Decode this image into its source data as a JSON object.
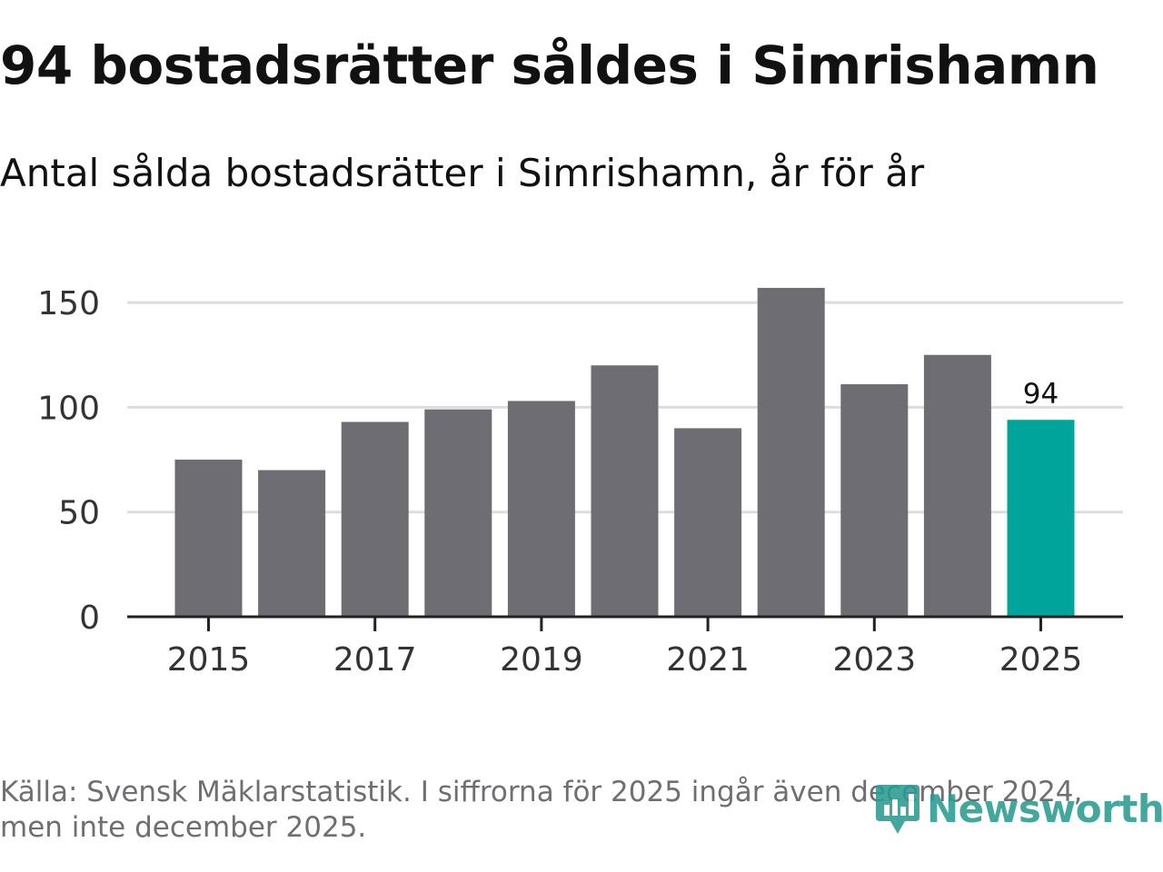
{
  "title": "94 bostadsrätter såldes i Simrishamn",
  "subtitle": "Antal sålda bostadsrätter i Simrishamn, år för år",
  "source": "Källa: Svensk Mäklarstatistik. I siffrorna för 2025 ingår även december 2024, men inte december 2025.",
  "logo": {
    "text": "Newsworthy",
    "icon": "newsworthy-logo-icon"
  },
  "colors": {
    "bar": "#6e6d73",
    "highlight": "#00a49a",
    "grid": "#dddddd",
    "axis": "#222222",
    "text": "#333333"
  },
  "chart_data": {
    "type": "bar",
    "title": "94 bostadsrätter såldes i Simrishamn",
    "subtitle": "Antal sålda bostadsrätter i Simrishamn, år för år",
    "xlabel": "",
    "ylabel": "",
    "categories": [
      "2015",
      "2016",
      "2017",
      "2018",
      "2019",
      "2020",
      "2021",
      "2022",
      "2023",
      "2024",
      "2025"
    ],
    "values": [
      75,
      70,
      93,
      99,
      103,
      120,
      90,
      157,
      111,
      125,
      94
    ],
    "highlight_index": 10,
    "data_labels": [
      {
        "index": 10,
        "text": "94"
      }
    ],
    "ylim": [
      0,
      160
    ],
    "yticks": [
      0,
      50,
      100,
      150
    ],
    "xticks": [
      "2015",
      "2017",
      "2019",
      "2021",
      "2023",
      "2025"
    ],
    "grid": true
  }
}
